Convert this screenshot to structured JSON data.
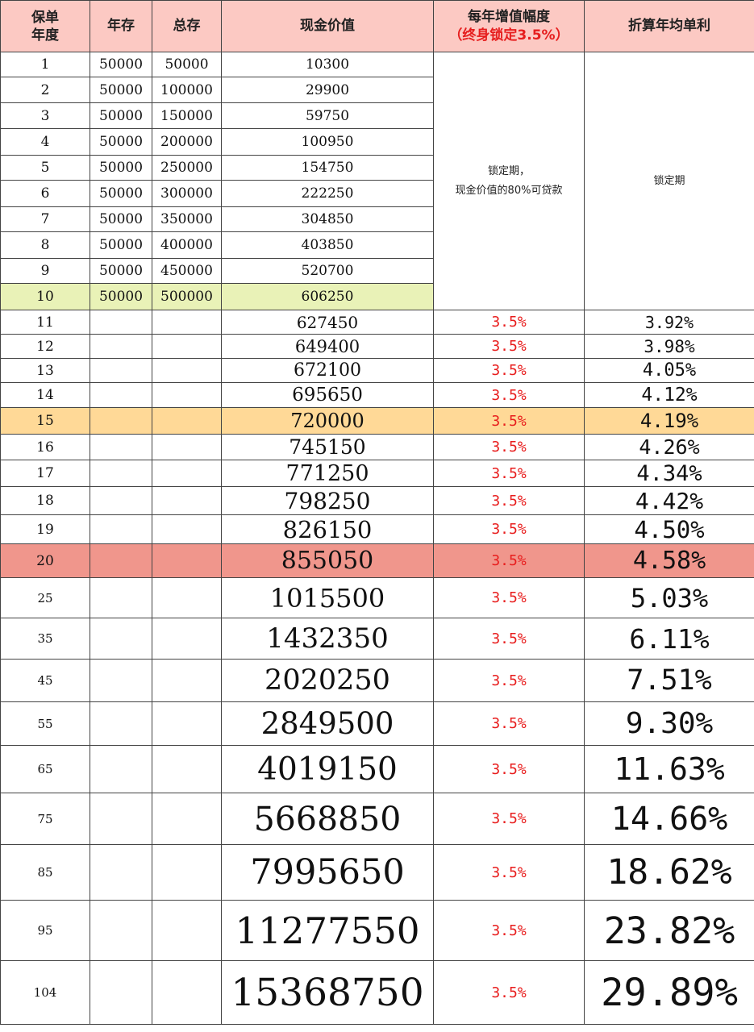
{
  "headers": {
    "year_line1": "保单",
    "year_line2": "年度",
    "annual_deposit": "年存",
    "total_deposit": "总存",
    "cash_value": "现金价值",
    "growth": "每年增值幅度",
    "growth_sub": "（终身锁定3.5%）",
    "simple_rate": "折算年均单利"
  },
  "lock_note_line1": "锁定期，",
  "lock_note_line2": "现金价值的80%可贷款",
  "lock_label": "锁定期",
  "highlight_colors": {
    "year10": "#e9f2b7",
    "year15": "#ffd997",
    "year20": "#f0968c",
    "header": "#fcc9c3",
    "percent_text": "#e81d1d"
  },
  "rows": [
    {
      "year": "1",
      "annual": "50000",
      "total": "50000",
      "cash": "10300"
    },
    {
      "year": "2",
      "annual": "50000",
      "total": "100000",
      "cash": "29900"
    },
    {
      "year": "3",
      "annual": "50000",
      "total": "150000",
      "cash": "59750"
    },
    {
      "year": "4",
      "annual": "50000",
      "total": "200000",
      "cash": "100950"
    },
    {
      "year": "5",
      "annual": "50000",
      "total": "250000",
      "cash": "154750"
    },
    {
      "year": "6",
      "annual": "50000",
      "total": "300000",
      "cash": "222250"
    },
    {
      "year": "7",
      "annual": "50000",
      "total": "350000",
      "cash": "304850"
    },
    {
      "year": "8",
      "annual": "50000",
      "total": "400000",
      "cash": "403850"
    },
    {
      "year": "9",
      "annual": "50000",
      "total": "450000",
      "cash": "520700"
    },
    {
      "year": "10",
      "annual": "50000",
      "total": "500000",
      "cash": "606250"
    },
    {
      "year": "11",
      "cash": "627450",
      "growth": "3.5%",
      "rate": "3.92%"
    },
    {
      "year": "12",
      "cash": "649400",
      "growth": "3.5%",
      "rate": "3.98%"
    },
    {
      "year": "13",
      "cash": "672100",
      "growth": "3.5%",
      "rate": "4.05%"
    },
    {
      "year": "14",
      "cash": "695650",
      "growth": "3.5%",
      "rate": "4.12%"
    },
    {
      "year": "15",
      "cash": "720000",
      "growth": "3.5%",
      "rate": "4.19%"
    },
    {
      "year": "16",
      "cash": "745150",
      "growth": "3.5%",
      "rate": "4.26%"
    },
    {
      "year": "17",
      "cash": "771250",
      "growth": "3.5%",
      "rate": "4.34%"
    },
    {
      "year": "18",
      "cash": "798250",
      "growth": "3.5%",
      "rate": "4.42%"
    },
    {
      "year": "19",
      "cash": "826150",
      "growth": "3.5%",
      "rate": "4.50%"
    },
    {
      "year": "20",
      "cash": "855050",
      "growth": "3.5%",
      "rate": "4.58%"
    },
    {
      "year": "25",
      "cash": "1015500",
      "growth": "3.5%",
      "rate": "5.03%"
    },
    {
      "year": "35",
      "cash": "1432350",
      "growth": "3.5%",
      "rate": "6.11%"
    },
    {
      "year": "45",
      "cash": "2020250",
      "growth": "3.5%",
      "rate": "7.51%"
    },
    {
      "year": "55",
      "cash": "2849500",
      "growth": "3.5%",
      "rate": "9.30%"
    },
    {
      "year": "65",
      "cash": "4019150",
      "growth": "3.5%",
      "rate": "11.63%"
    },
    {
      "year": "75",
      "cash": "5668850",
      "growth": "3.5%",
      "rate": "14.66%"
    },
    {
      "year": "85",
      "cash": "7995650",
      "growth": "3.5%",
      "rate": "18.62%"
    },
    {
      "year": "95",
      "cash": "11277550",
      "growth": "3.5%",
      "rate": "23.82%"
    },
    {
      "year": "104",
      "cash": "15368750",
      "growth": "3.5%",
      "rate": "29.89%"
    }
  ]
}
